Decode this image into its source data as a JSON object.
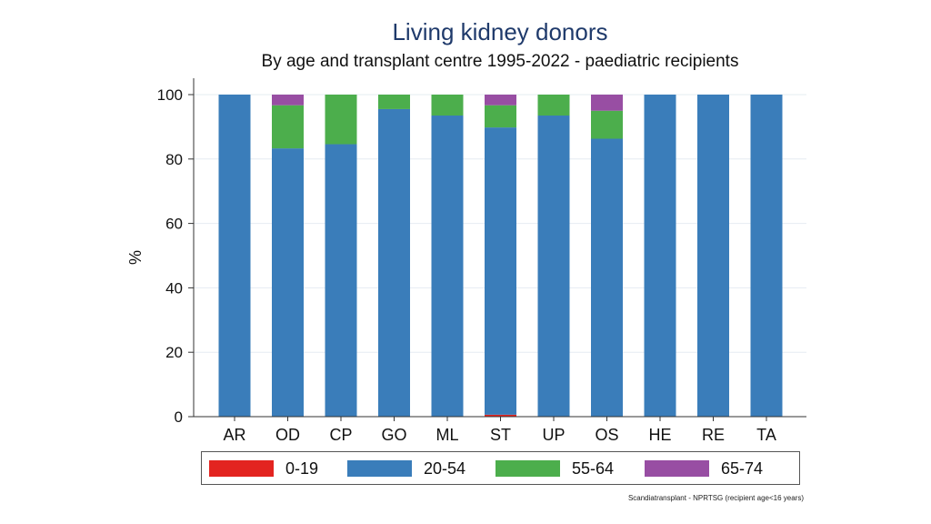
{
  "chart_data": {
    "type": "bar",
    "stacked": true,
    "title": "Living kidney donors",
    "subtitle": "By age and transplant centre 1995-2022 - paediatric recipients",
    "xlabel": "",
    "ylabel": "%",
    "ylim": [
      0,
      100
    ],
    "yticks": [
      "0",
      "20",
      "40",
      "60",
      "80",
      "100"
    ],
    "grid": true,
    "categories": [
      "AR",
      "OD",
      "CP",
      "GO",
      "ML",
      "ST",
      "UP",
      "OS",
      "HE",
      "RE",
      "TA"
    ],
    "series": [
      {
        "name": "0-19",
        "color": "#e32420",
        "values": [
          0,
          0,
          0,
          0,
          0,
          0.6,
          0,
          0,
          0,
          0,
          0
        ]
      },
      {
        "name": "20-54",
        "color": "#3a7dba",
        "values": [
          100,
          83.3,
          84.6,
          95.5,
          93.5,
          89.2,
          93.5,
          86.3,
          100,
          100,
          100
        ]
      },
      {
        "name": "55-64",
        "color": "#4cae4c",
        "values": [
          0,
          13.4,
          15.4,
          4.5,
          6.5,
          6.9,
          6.5,
          8.7,
          0,
          0,
          0
        ]
      },
      {
        "name": "65-74",
        "color": "#984ea3",
        "values": [
          0,
          3.3,
          0,
          0,
          0,
          3.3,
          0,
          5.0,
          0,
          0,
          0
        ]
      }
    ],
    "legend_position": "bottom"
  },
  "footnote": "Scandiatransplant - NPRTSG (recipient age<16 years)"
}
